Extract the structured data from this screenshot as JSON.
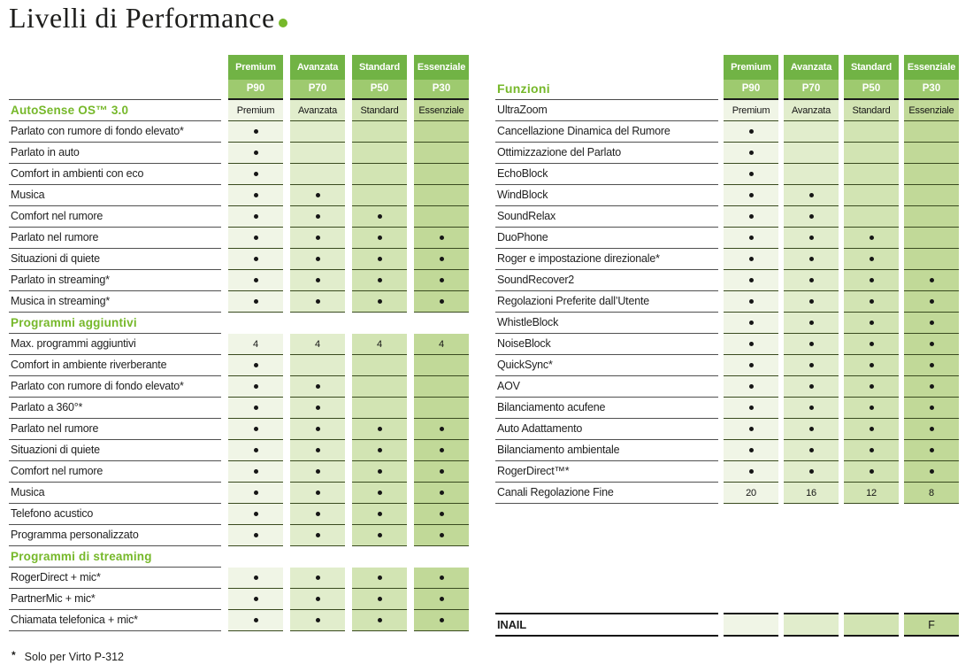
{
  "page": {
    "title": "Livelli di Performance",
    "footnote_marker": "*",
    "footnote_text": "Solo per Virto P-312"
  },
  "tiers": [
    {
      "name": "Premium",
      "code": "P90"
    },
    {
      "name": "Avanzata",
      "code": "P70"
    },
    {
      "name": "Standard",
      "code": "P50"
    },
    {
      "name": "Essenziale",
      "code": "P30"
    }
  ],
  "colors": {
    "accent_green": "#76b82a",
    "header_top_bg": "#71b345",
    "header_code_bg": "#9eca6f",
    "column_backgrounds": [
      "#f0f5e6",
      "#e1edcc",
      "#d2e4b3",
      "#c1d998"
    ]
  },
  "left_table": {
    "header_label": "",
    "sections": [
      {
        "heading": null,
        "rows": [
          {
            "label": "AutoSense OS™ 3.0",
            "green_label": true,
            "values": [
              "Premium",
              "Avanzata",
              "Standard",
              "Essenziale"
            ]
          },
          {
            "label": "Parlato con rumore di fondo elevato*",
            "values": [
              "•",
              "",
              "",
              ""
            ]
          },
          {
            "label": "Parlato in auto",
            "values": [
              "•",
              "",
              "",
              ""
            ]
          },
          {
            "label": "Comfort in ambienti con eco",
            "values": [
              "•",
              "",
              "",
              ""
            ]
          },
          {
            "label": "Musica",
            "values": [
              "•",
              "•",
              "",
              ""
            ]
          },
          {
            "label": "Comfort nel rumore",
            "values": [
              "•",
              "•",
              "•",
              ""
            ]
          },
          {
            "label": "Parlato nel rumore",
            "values": [
              "•",
              "•",
              "•",
              "•"
            ]
          },
          {
            "label": "Situazioni di quiete",
            "values": [
              "•",
              "•",
              "•",
              "•"
            ]
          },
          {
            "label": "Parlato in streaming*",
            "values": [
              "•",
              "•",
              "•",
              "•"
            ]
          },
          {
            "label": "Musica in streaming*",
            "values": [
              "•",
              "•",
              "•",
              "•"
            ]
          }
        ]
      },
      {
        "heading": "Programmi aggiuntivi",
        "rows": [
          {
            "label": "Max. programmi aggiuntivi",
            "values": [
              "4",
              "4",
              "4",
              "4"
            ]
          },
          {
            "label": "Comfort in ambiente riverberante",
            "values": [
              "•",
              "",
              "",
              ""
            ]
          },
          {
            "label": "Parlato con rumore di fondo elevato*",
            "values": [
              "•",
              "•",
              "",
              ""
            ]
          },
          {
            "label": "Parlato a 360°*",
            "values": [
              "•",
              "•",
              "",
              ""
            ]
          },
          {
            "label": "Parlato nel rumore",
            "values": [
              "•",
              "•",
              "•",
              "•"
            ]
          },
          {
            "label": "Situazioni di quiete",
            "values": [
              "•",
              "•",
              "•",
              "•"
            ]
          },
          {
            "label": "Comfort nel rumore",
            "values": [
              "•",
              "•",
              "•",
              "•"
            ]
          },
          {
            "label": "Musica",
            "values": [
              "•",
              "•",
              "•",
              "•"
            ]
          },
          {
            "label": "Telefono acustico",
            "values": [
              "•",
              "•",
              "•",
              "•"
            ]
          },
          {
            "label": "Programma personalizzato",
            "values": [
              "•",
              "•",
              "•",
              "•"
            ]
          }
        ]
      },
      {
        "heading": "Programmi di streaming",
        "rows": [
          {
            "label": "RogerDirect + mic*",
            "values": [
              "•",
              "•",
              "•",
              "•"
            ]
          },
          {
            "label": "PartnerMic + mic*",
            "values": [
              "•",
              "•",
              "•",
              "•"
            ]
          },
          {
            "label": "Chiamata telefonica + mic*",
            "values": [
              "•",
              "•",
              "•",
              "•"
            ]
          }
        ]
      }
    ]
  },
  "right_table": {
    "header_label": "Funzioni",
    "sections": [
      {
        "heading": null,
        "rows": [
          {
            "label": "UltraZoom",
            "values": [
              "Premium",
              "Avanzata",
              "Standard",
              "Essenziale"
            ]
          },
          {
            "label": "Cancellazione Dinamica del Rumore",
            "values": [
              "•",
              "",
              "",
              ""
            ]
          },
          {
            "label": "Ottimizzazione del Parlato",
            "values": [
              "•",
              "",
              "",
              ""
            ]
          },
          {
            "label": "EchoBlock",
            "values": [
              "•",
              "",
              "",
              ""
            ]
          },
          {
            "label": "WindBlock",
            "values": [
              "•",
              "•",
              "",
              ""
            ]
          },
          {
            "label": "SoundRelax",
            "values": [
              "•",
              "•",
              "",
              ""
            ]
          },
          {
            "label": "DuoPhone",
            "values": [
              "•",
              "•",
              "•",
              ""
            ]
          },
          {
            "label": "Roger e impostazione direzionale*",
            "values": [
              "•",
              "•",
              "•",
              ""
            ]
          },
          {
            "label": "SoundRecover2",
            "values": [
              "•",
              "•",
              "•",
              "•"
            ]
          },
          {
            "label": "Regolazioni Preferite dall’Utente",
            "values": [
              "•",
              "•",
              "•",
              "•"
            ]
          },
          {
            "label": "WhistleBlock",
            "values": [
              "•",
              "•",
              "•",
              "•"
            ]
          },
          {
            "label": "NoiseBlock",
            "values": [
              "•",
              "•",
              "•",
              "•"
            ]
          },
          {
            "label": "QuickSync*",
            "values": [
              "•",
              "•",
              "•",
              "•"
            ]
          },
          {
            "label": "AOV",
            "values": [
              "•",
              "•",
              "•",
              "•"
            ]
          },
          {
            "label": "Bilanciamento acufene",
            "values": [
              "•",
              "•",
              "•",
              "•"
            ]
          },
          {
            "label": "Auto Adattamento",
            "values": [
              "•",
              "•",
              "•",
              "•"
            ]
          },
          {
            "label": "Bilanciamento ambientale",
            "values": [
              "•",
              "•",
              "•",
              "•"
            ]
          },
          {
            "label": "RogerDirect™*",
            "values": [
              "•",
              "•",
              "•",
              "•"
            ]
          },
          {
            "label": "Canali Regolazione Fine",
            "values": [
              "20",
              "16",
              "12",
              "8"
            ]
          }
        ]
      }
    ],
    "inail_row": {
      "label": "INAIL",
      "values": [
        "",
        "",
        "",
        "F"
      ]
    }
  }
}
